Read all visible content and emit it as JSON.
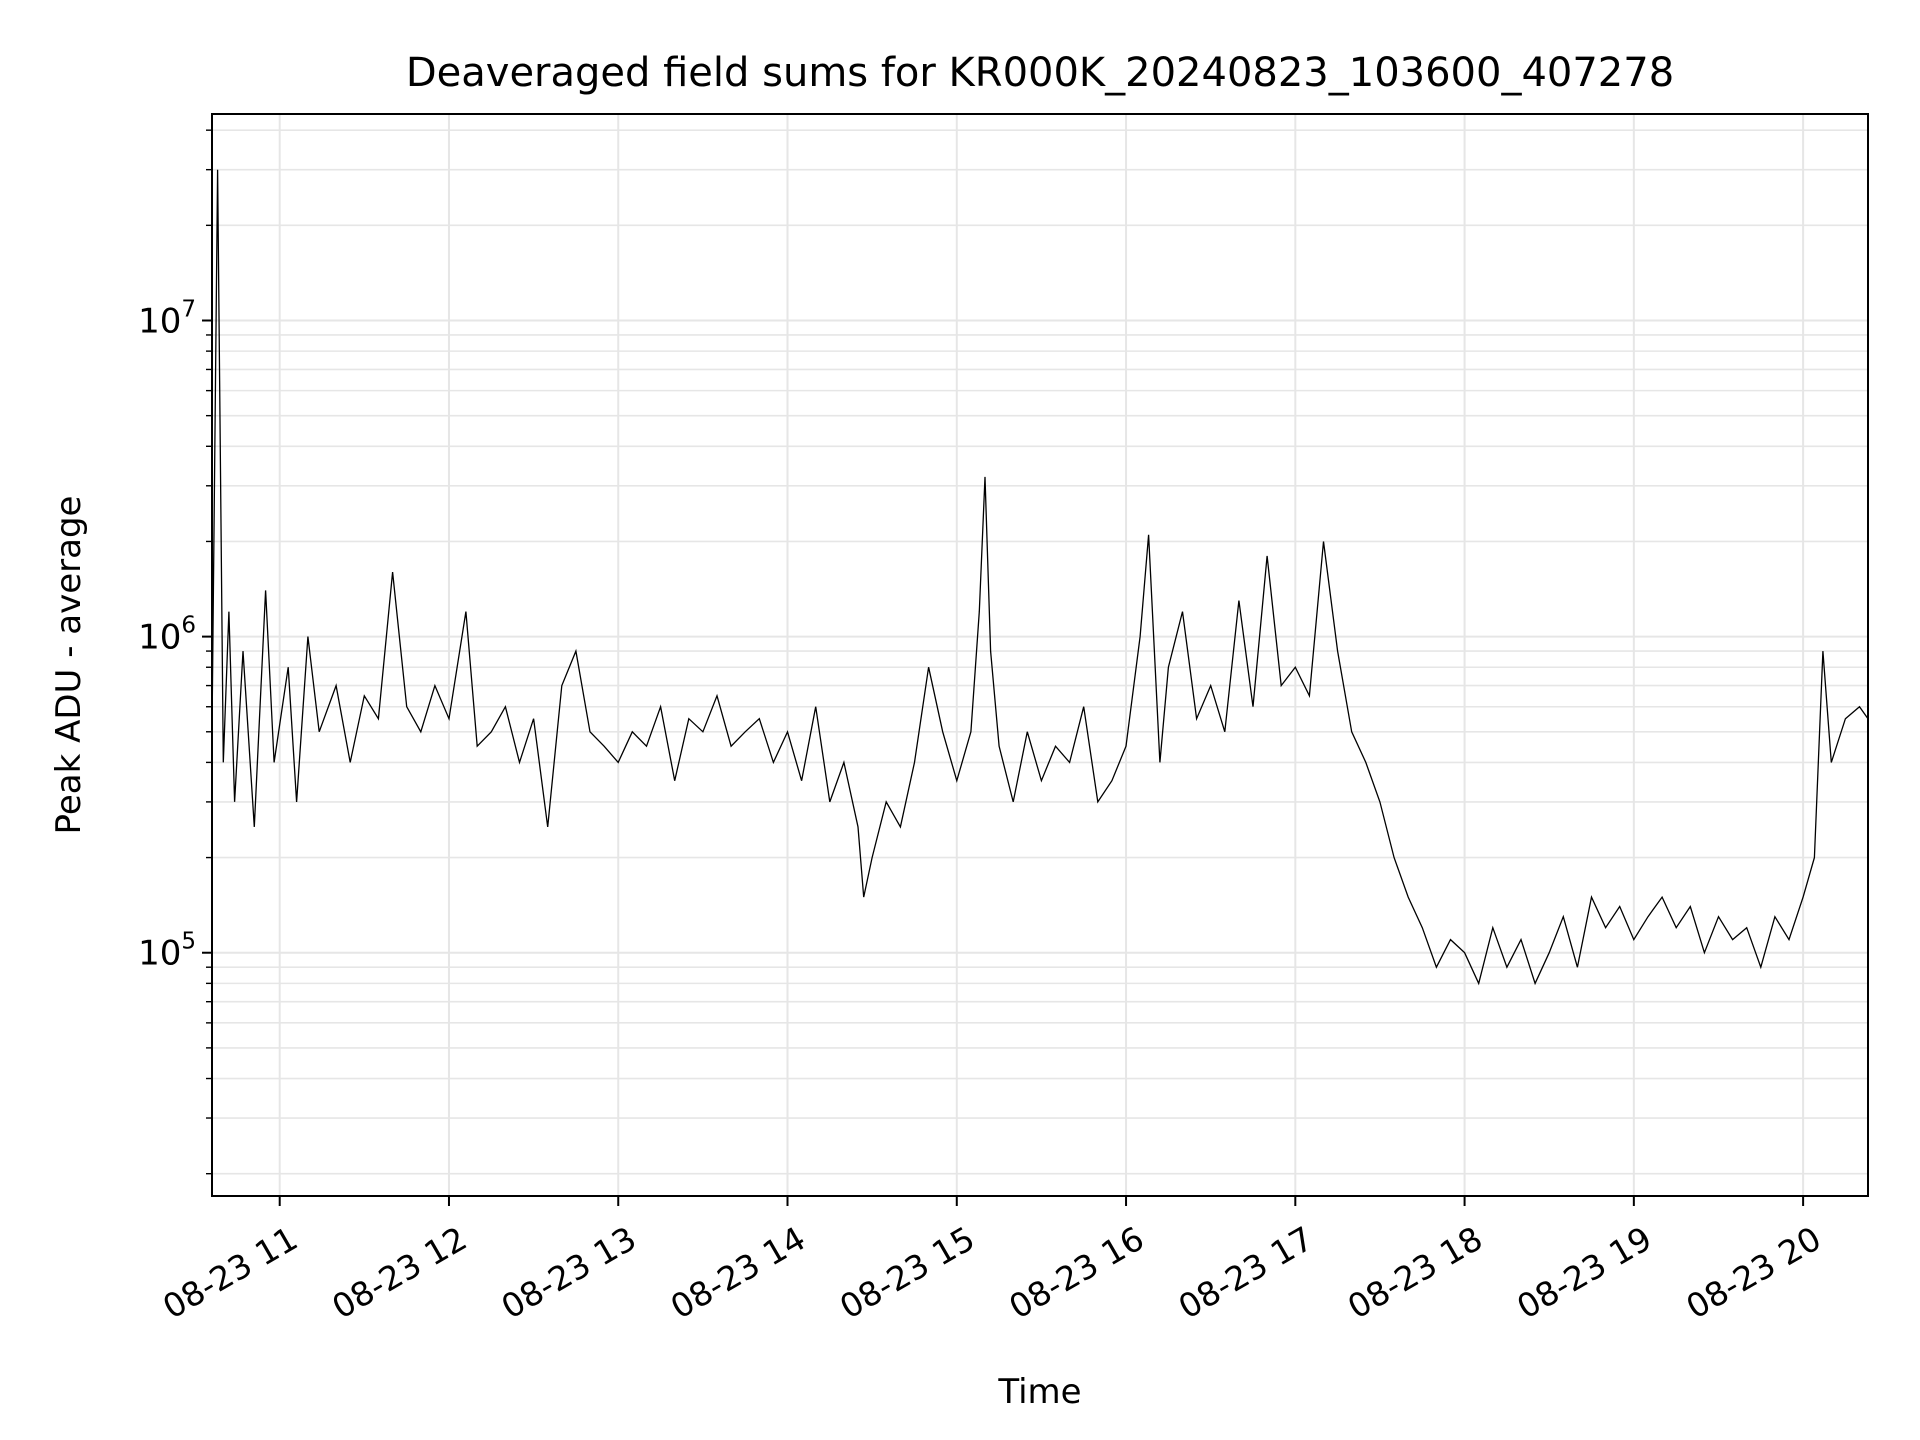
{
  "chart_data": {
    "type": "line",
    "title": "Deaveraged field sums for KR000K_20240823_103600_407278",
    "xlabel": "Time",
    "ylabel": "Peak ADU - average",
    "yscale": "log",
    "grid": true,
    "xlim": [
      "2024-08-23T10:36:00",
      "2024-08-23T20:23:00"
    ],
    "ylim": [
      17000,
      45000000
    ],
    "x_ticks": [
      {
        "value": "2024-08-23T11:00:00",
        "label": "08-23 11"
      },
      {
        "value": "2024-08-23T12:00:00",
        "label": "08-23 12"
      },
      {
        "value": "2024-08-23T13:00:00",
        "label": "08-23 13"
      },
      {
        "value": "2024-08-23T14:00:00",
        "label": "08-23 14"
      },
      {
        "value": "2024-08-23T15:00:00",
        "label": "08-23 15"
      },
      {
        "value": "2024-08-23T16:00:00",
        "label": "08-23 16"
      },
      {
        "value": "2024-08-23T17:00:00",
        "label": "08-23 17"
      },
      {
        "value": "2024-08-23T18:00:00",
        "label": "08-23 18"
      },
      {
        "value": "2024-08-23T19:00:00",
        "label": "08-23 19"
      },
      {
        "value": "2024-08-23T20:00:00",
        "label": "08-23 20"
      }
    ],
    "y_ticks": [
      {
        "value": 100000,
        "base": "10",
        "exponent": "5"
      },
      {
        "value": 1000000,
        "base": "10",
        "exponent": "6"
      },
      {
        "value": 10000000,
        "base": "10",
        "exponent": "7"
      }
    ],
    "series": [
      {
        "x": [
          "2024-08-23T10:36:00",
          "2024-08-23T10:38:00",
          "2024-08-23T10:40:00",
          "2024-08-23T10:42:00",
          "2024-08-23T10:44:00",
          "2024-08-23T10:47:00",
          "2024-08-23T10:51:00",
          "2024-08-23T10:55:00",
          "2024-08-23T10:58:00",
          "2024-08-23T11:03:00",
          "2024-08-23T11:06:00",
          "2024-08-23T11:10:00",
          "2024-08-23T11:14:00",
          "2024-08-23T11:20:00",
          "2024-08-23T11:25:00",
          "2024-08-23T11:30:00",
          "2024-08-23T11:35:00",
          "2024-08-23T11:40:00",
          "2024-08-23T11:45:00",
          "2024-08-23T11:50:00",
          "2024-08-23T11:55:00",
          "2024-08-23T12:00:00",
          "2024-08-23T12:06:00",
          "2024-08-23T12:10:00",
          "2024-08-23T12:15:00",
          "2024-08-23T12:20:00",
          "2024-08-23T12:25:00",
          "2024-08-23T12:30:00",
          "2024-08-23T12:35:00",
          "2024-08-23T12:40:00",
          "2024-08-23T12:45:00",
          "2024-08-23T12:50:00",
          "2024-08-23T12:55:00",
          "2024-08-23T13:00:00",
          "2024-08-23T13:05:00",
          "2024-08-23T13:10:00",
          "2024-08-23T13:15:00",
          "2024-08-23T13:20:00",
          "2024-08-23T13:25:00",
          "2024-08-23T13:30:00",
          "2024-08-23T13:35:00",
          "2024-08-23T13:40:00",
          "2024-08-23T13:45:00",
          "2024-08-23T13:50:00",
          "2024-08-23T13:55:00",
          "2024-08-23T14:00:00",
          "2024-08-23T14:05:00",
          "2024-08-23T14:10:00",
          "2024-08-23T14:15:00",
          "2024-08-23T14:20:00",
          "2024-08-23T14:25:00",
          "2024-08-23T14:27:00",
          "2024-08-23T14:30:00",
          "2024-08-23T14:35:00",
          "2024-08-23T14:40:00",
          "2024-08-23T14:45:00",
          "2024-08-23T14:50:00",
          "2024-08-23T14:55:00",
          "2024-08-23T15:00:00",
          "2024-08-23T15:05:00",
          "2024-08-23T15:08:00",
          "2024-08-23T15:10:00",
          "2024-08-23T15:12:00",
          "2024-08-23T15:15:00",
          "2024-08-23T15:20:00",
          "2024-08-23T15:25:00",
          "2024-08-23T15:30:00",
          "2024-08-23T15:35:00",
          "2024-08-23T15:40:00",
          "2024-08-23T15:45:00",
          "2024-08-23T15:50:00",
          "2024-08-23T15:55:00",
          "2024-08-23T16:00:00",
          "2024-08-23T16:05:00",
          "2024-08-23T16:08:00",
          "2024-08-23T16:12:00",
          "2024-08-23T16:15:00",
          "2024-08-23T16:20:00",
          "2024-08-23T16:25:00",
          "2024-08-23T16:30:00",
          "2024-08-23T16:35:00",
          "2024-08-23T16:40:00",
          "2024-08-23T16:45:00",
          "2024-08-23T16:50:00",
          "2024-08-23T16:55:00",
          "2024-08-23T17:00:00",
          "2024-08-23T17:05:00",
          "2024-08-23T17:10:00",
          "2024-08-23T17:15:00",
          "2024-08-23T17:20:00",
          "2024-08-23T17:25:00",
          "2024-08-23T17:30:00",
          "2024-08-23T17:35:00",
          "2024-08-23T17:40:00",
          "2024-08-23T17:45:00",
          "2024-08-23T17:50:00",
          "2024-08-23T17:55:00",
          "2024-08-23T18:00:00",
          "2024-08-23T18:05:00",
          "2024-08-23T18:10:00",
          "2024-08-23T18:15:00",
          "2024-08-23T18:20:00",
          "2024-08-23T18:25:00",
          "2024-08-23T18:30:00",
          "2024-08-23T18:35:00",
          "2024-08-23T18:40:00",
          "2024-08-23T18:45:00",
          "2024-08-23T18:50:00",
          "2024-08-23T18:55:00",
          "2024-08-23T19:00:00",
          "2024-08-23T19:05:00",
          "2024-08-23T19:10:00",
          "2024-08-23T19:15:00",
          "2024-08-23T19:20:00",
          "2024-08-23T19:25:00",
          "2024-08-23T19:30:00",
          "2024-08-23T19:35:00",
          "2024-08-23T19:40:00",
          "2024-08-23T19:45:00",
          "2024-08-23T19:50:00",
          "2024-08-23T19:55:00",
          "2024-08-23T20:00:00",
          "2024-08-23T20:04:00",
          "2024-08-23T20:07:00",
          "2024-08-23T20:10:00",
          "2024-08-23T20:15:00",
          "2024-08-23T20:20:00",
          "2024-08-23T20:23:00"
        ],
        "y": [
          500000,
          30000000,
          400000,
          1200000,
          300000,
          900000,
          250000,
          1400000,
          400000,
          800000,
          300000,
          1000000,
          500000,
          700000,
          400000,
          650000,
          550000,
          1600000,
          600000,
          500000,
          700000,
          550000,
          1200000,
          450000,
          500000,
          600000,
          400000,
          550000,
          250000,
          700000,
          900000,
          500000,
          450000,
          400000,
          500000,
          450000,
          600000,
          350000,
          550000,
          500000,
          650000,
          450000,
          500000,
          550000,
          400000,
          500000,
          350000,
          600000,
          300000,
          400000,
          250000,
          150000,
          200000,
          300000,
          250000,
          400000,
          800000,
          500000,
          350000,
          500000,
          1200000,
          3200000,
          900000,
          450000,
          300000,
          500000,
          350000,
          450000,
          400000,
          600000,
          300000,
          350000,
          450000,
          1000000,
          2100000,
          400000,
          800000,
          1200000,
          550000,
          700000,
          500000,
          1300000,
          600000,
          1800000,
          700000,
          800000,
          650000,
          2000000,
          900000,
          500000,
          400000,
          300000,
          200000,
          150000,
          120000,
          90000,
          110000,
          100000,
          80000,
          120000,
          90000,
          110000,
          80000,
          100000,
          130000,
          90000,
          150000,
          120000,
          140000,
          110000,
          130000,
          150000,
          120000,
          140000,
          100000,
          130000,
          110000,
          120000,
          90000,
          130000,
          110000,
          150000,
          200000,
          900000,
          400000,
          550000,
          600000,
          550000
        ]
      }
    ]
  }
}
